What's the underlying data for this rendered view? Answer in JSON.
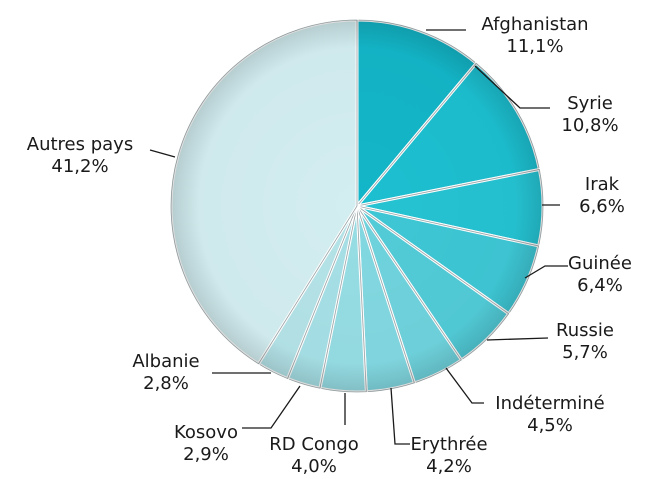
{
  "chart_data": {
    "type": "pie",
    "start_angle_deg": 0,
    "direction": "clockwise",
    "slices": [
      {
        "label": "Afghanistan",
        "value": 11.1,
        "value_text": "11,1%",
        "color": "#13b6c8"
      },
      {
        "label": "Syrie",
        "value": 10.8,
        "value_text": "10,8%",
        "color": "#1cbfd0"
      },
      {
        "label": "Irak",
        "value": 6.6,
        "value_text": "6,6%",
        "color": "#25c3d3"
      },
      {
        "label": "Guinée",
        "value": 6.4,
        "value_text": "6,4%",
        "color": "#3ec7d5"
      },
      {
        "label": "Russie",
        "value": 5.7,
        "value_text": "5,7%",
        "color": "#52ccd8"
      },
      {
        "label": "Indéterminé",
        "value": 4.5,
        "value_text": "4,5%",
        "color": "#6fd3dd"
      },
      {
        "label": "Erythrée",
        "value": 4.2,
        "value_text": "4,2%",
        "color": "#82d8e1"
      },
      {
        "label": "RD Congo",
        "value": 4.0,
        "value_text": "4,0%",
        "color": "#96dde4"
      },
      {
        "label": "Kosovo",
        "value": 2.9,
        "value_text": "2,9%",
        "color": "#a6e0e6"
      },
      {
        "label": "Albanie",
        "value": 2.8,
        "value_text": "2,8%",
        "color": "#b4e3e8"
      },
      {
        "label": "Autres pays",
        "value": 41.2,
        "value_text": "41,2%",
        "color": "#d3eef1"
      }
    ]
  }
}
